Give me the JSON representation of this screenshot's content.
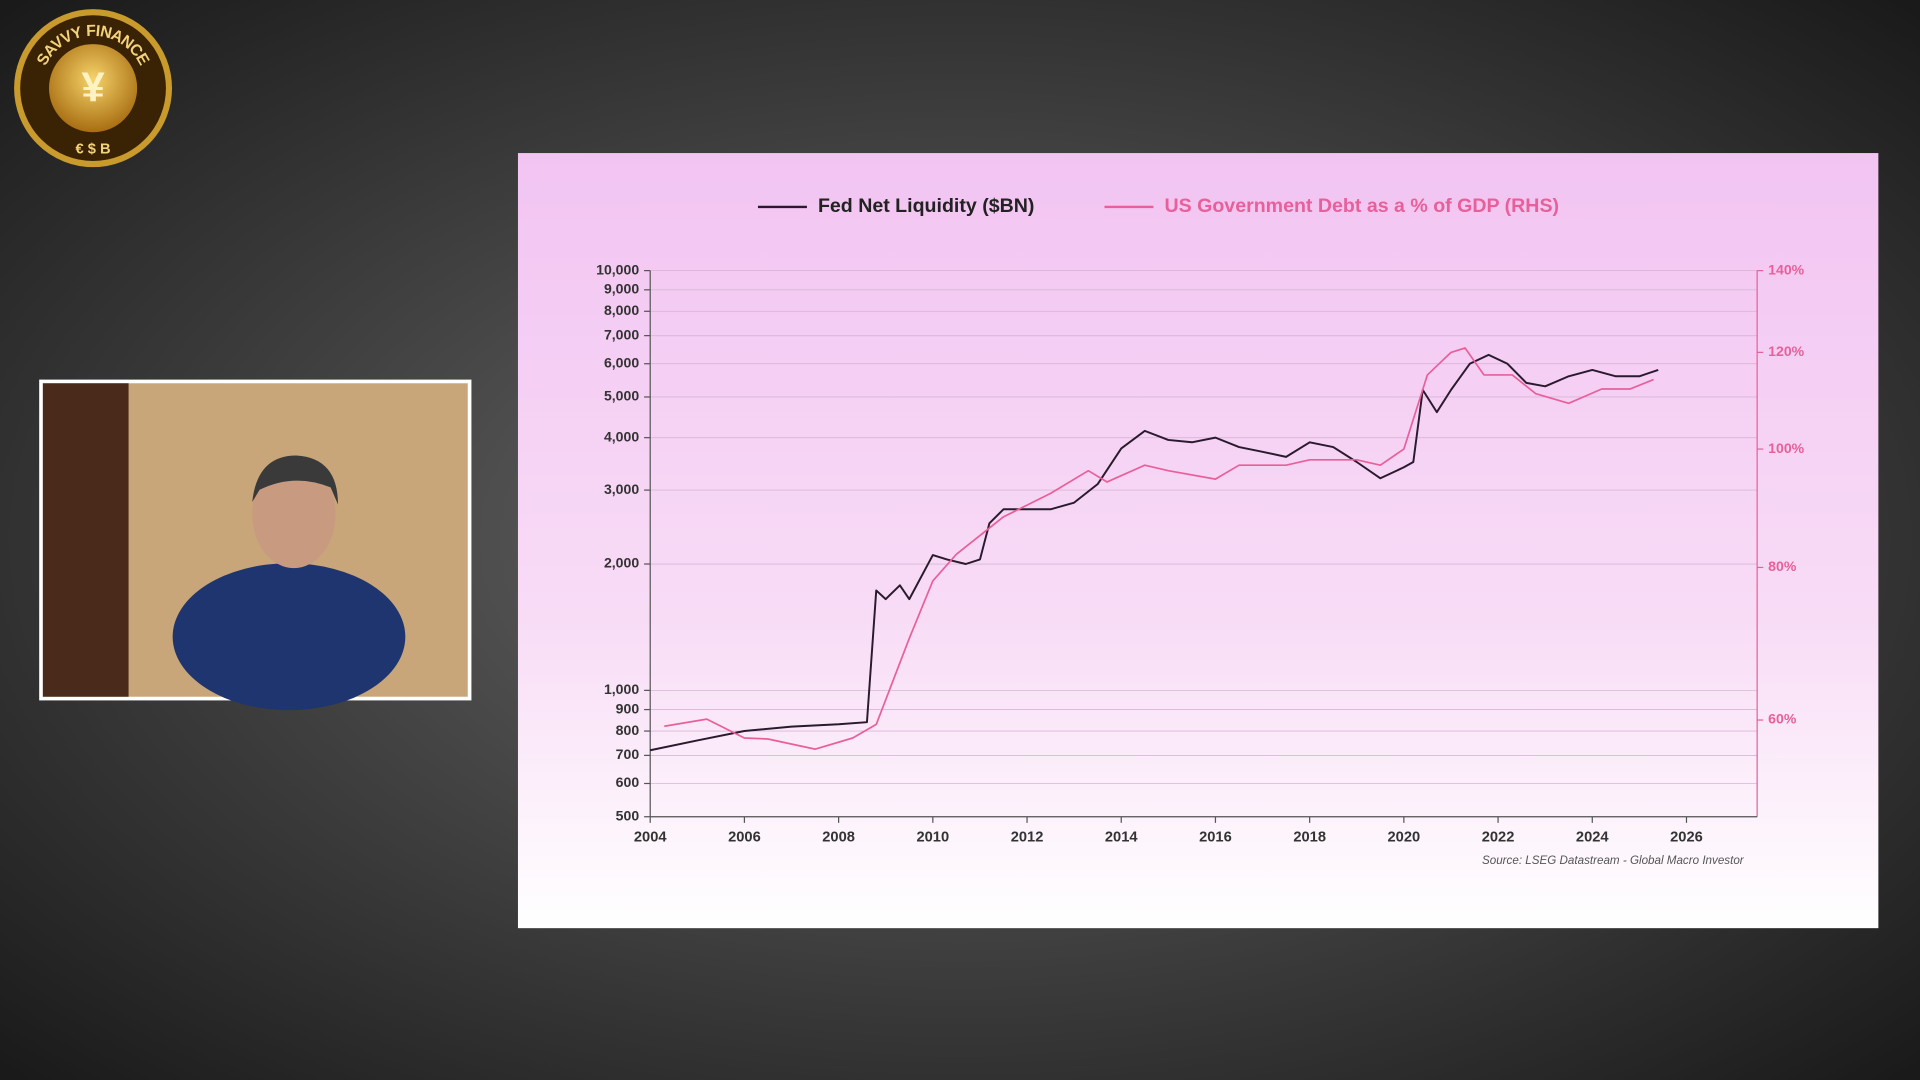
{
  "logo": {
    "text": "SAVVY FINANCE",
    "symbols": "€ $ B"
  },
  "chart_data": {
    "type": "line",
    "legend_position": "top",
    "grid": true,
    "ylog": true,
    "y2log": true,
    "xlim": [
      2004,
      2027.5
    ],
    "xticks": [
      2004,
      2006,
      2008,
      2010,
      2012,
      2014,
      2016,
      2018,
      2020,
      2022,
      2024,
      2026
    ],
    "ylim": [
      500,
      10000
    ],
    "yticks": [
      500,
      600,
      700,
      800,
      900,
      {
        "value": 1000,
        "label": "1,000"
      },
      {
        "value": 2000,
        "label": "2,000"
      },
      {
        "value": 3000,
        "label": "3,000"
      },
      {
        "value": 4000,
        "label": "4,000"
      },
      {
        "value": 5000,
        "label": "5,000"
      },
      {
        "value": 6000,
        "label": "6,000"
      },
      {
        "value": 7000,
        "label": "7,000"
      },
      {
        "value": 8000,
        "label": "8,000"
      },
      {
        "value": 9000,
        "label": "9,000"
      },
      {
        "value": 10000,
        "label": "10,000"
      }
    ],
    "y2lim": [
      50,
      140
    ],
    "y2ticks": [
      {
        "value": 60,
        "label": "60%"
      },
      {
        "value": 80,
        "label": "80%"
      },
      {
        "value": 100,
        "label": "100%"
      },
      {
        "value": 120,
        "label": "120%"
      },
      {
        "value": 140,
        "label": "140%"
      }
    ],
    "source": "Source: LSEG Datastream - Global Macro Investor",
    "series": [
      {
        "name": "Fed Net Liquidity ($BN)",
        "color": "#2a1a2e",
        "x": [
          2004.0,
          2005.0,
          2006.0,
          2007.0,
          2008.0,
          2008.6,
          2008.8,
          2009.0,
          2009.3,
          2009.5,
          2010.0,
          2010.3,
          2010.7,
          2011.0,
          2011.2,
          2011.5,
          2012.0,
          2012.5,
          2013.0,
          2013.5,
          2014.0,
          2014.5,
          2015.0,
          2015.5,
          2016.0,
          2016.5,
          2017.0,
          2017.5,
          2018.0,
          2018.5,
          2019.0,
          2019.5,
          2020.0,
          2020.2,
          2020.4,
          2020.7,
          2021.0,
          2021.4,
          2021.8,
          2022.2,
          2022.6,
          2023.0,
          2023.5,
          2024.0,
          2024.5,
          2025.0,
          2025.4
        ],
        "values": [
          720,
          760,
          800,
          820,
          830,
          840,
          1730,
          1650,
          1780,
          1650,
          2100,
          2050,
          2000,
          2050,
          2500,
          2700,
          2700,
          2700,
          2800,
          3100,
          3770,
          4150,
          3950,
          3900,
          4000,
          3800,
          3700,
          3600,
          3900,
          3800,
          3500,
          3200,
          3400,
          3500,
          5200,
          4600,
          5200,
          6000,
          6300,
          6000,
          5400,
          5300,
          5600,
          5800,
          5600,
          5600,
          5800
        ],
        "axis": "y"
      },
      {
        "name": "US Government Debt as a % of GDP (RHS)",
        "color": "#e8609a",
        "x": [
          2004.3,
          2005.2,
          2006.0,
          2006.5,
          2007.5,
          2008.3,
          2008.8,
          2009.5,
          2010.0,
          2010.5,
          2011.5,
          2012.5,
          2013.3,
          2013.7,
          2014.5,
          2015.0,
          2016.0,
          2016.5,
          2017.5,
          2018.0,
          2019.0,
          2019.5,
          2020.0,
          2020.5,
          2021.0,
          2021.3,
          2021.7,
          2022.3,
          2022.8,
          2023.5,
          2024.2,
          2024.8,
          2025.3
        ],
        "values": [
          59.3,
          60.1,
          58,
          57.9,
          56.8,
          58,
          59.5,
          70,
          78,
          82,
          88,
          92,
          96,
          94,
          97,
          96,
          94.5,
          97,
          97,
          98,
          98,
          97,
          100,
          115,
          120,
          121,
          115,
          115,
          111,
          109,
          112,
          112,
          114
        ],
        "axis": "y2"
      }
    ]
  }
}
